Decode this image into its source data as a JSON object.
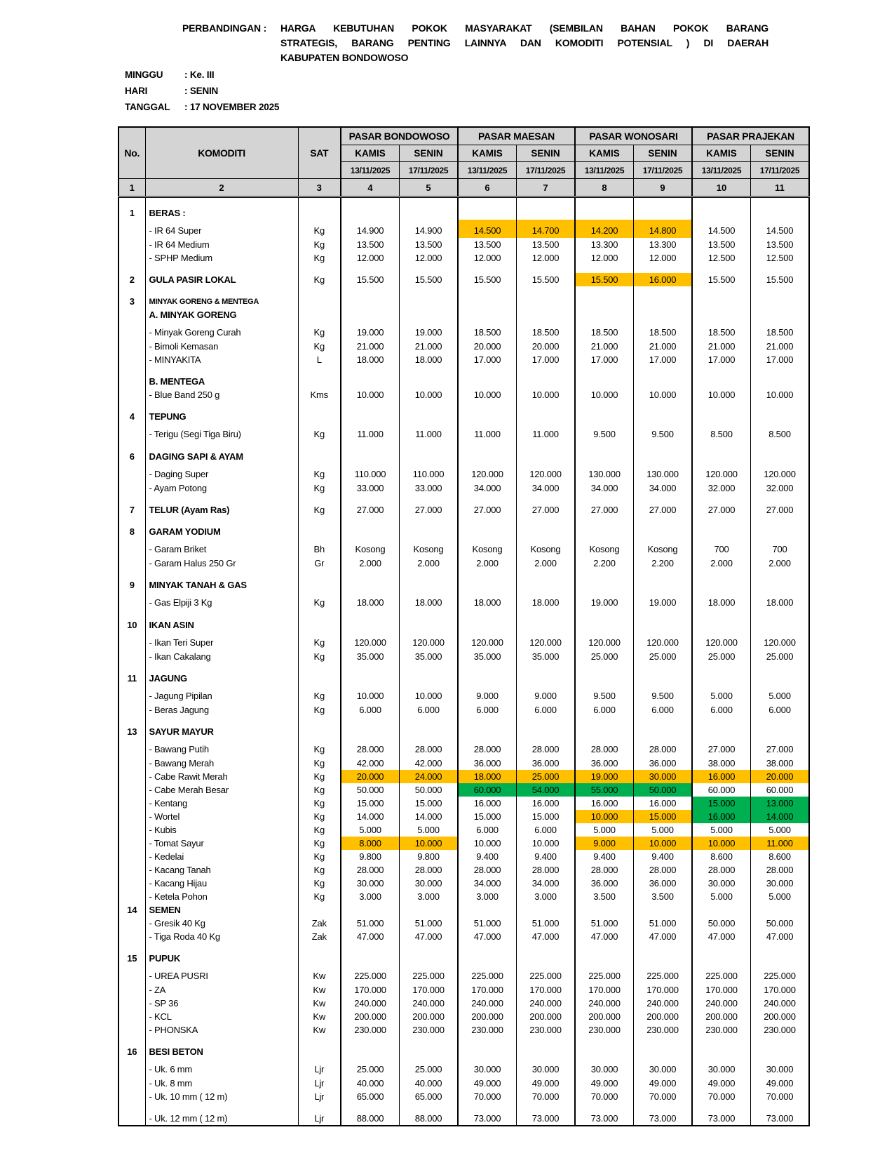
{
  "title": {
    "label": "PERBANDINGAN :",
    "lines": [
      "HARGA  KEBUTUHAN  POKOK  MASYARAKAT  (SEMBILAN  BAHAN  POKOK  BARANG",
      "STRATEGIS,  BARANG  PENTING  LAINNYA  DAN  KOMODITI POTENSIAL ) DI DAERAH",
      "KABUPATEN BONDOWOSO"
    ]
  },
  "meta": {
    "minggu": {
      "label": "MINGGU",
      "value": ": Ke. III"
    },
    "hari": {
      "label": "HARI",
      "value": ": SENIN"
    },
    "tanggal": {
      "label": "TANGGAL",
      "value": ": 17 NOVEMBER 2025"
    }
  },
  "table": {
    "fixed_headers": {
      "no": "No.",
      "komoditi": "KOMODITI",
      "sat": "SAT"
    },
    "markets": [
      "PASAR BONDOWOSO",
      "PASAR MAESAN",
      "PASAR WONOSARI",
      "PASAR PRAJEKAN"
    ],
    "days": [
      "KAMIS",
      "SENIN"
    ],
    "dates": [
      "13/11/2025",
      "17/11/2025"
    ],
    "col_numbers": [
      "1",
      "2",
      "3",
      "4",
      "5",
      "6",
      "7",
      "8",
      "9",
      "10",
      "11"
    ],
    "highlight_colors": {
      "O": "#FFC000",
      "G": "#00B050"
    },
    "header_bg": "#d4d4d4",
    "rows": [
      {
        "type": "spacer",
        "h": 8
      },
      {
        "type": "section",
        "no": "1",
        "label": "BERAS :"
      },
      {
        "type": "item",
        "first": true,
        "label": "- IR 64 Super",
        "sat": "Kg",
        "values": [
          "14.900",
          "14.900",
          "14.500",
          "14.700",
          "14.200",
          "14.800",
          "14.500",
          "14.500"
        ],
        "hl": {
          "2": "O",
          "3": "O",
          "4": "O",
          "5": "O"
        }
      },
      {
        "type": "item",
        "label": "- IR 64 Medium",
        "sat": "Kg",
        "values": [
          "13.500",
          "13.500",
          "13.500",
          "13.500",
          "13.300",
          "13.300",
          "13.500",
          "13.500"
        ]
      },
      {
        "type": "item",
        "label": "- SPHP Medium",
        "sat": "Kg",
        "values": [
          "12.000",
          "12.000",
          "12.000",
          "12.000",
          "12.000",
          "12.000",
          "12.500",
          "12.500"
        ]
      },
      {
        "type": "spacer"
      },
      {
        "type": "section",
        "no": "2",
        "label": "GULA PASIR LOKAL",
        "sat": "Kg",
        "values": [
          "15.500",
          "15.500",
          "15.500",
          "15.500",
          "15.500",
          "16.000",
          "15.500",
          "15.500"
        ],
        "hl": {
          "4": "O",
          "5": "O"
        }
      },
      {
        "type": "spacer"
      },
      {
        "type": "section",
        "no": "3",
        "label": "MINYAK GORENG & MENTEGA",
        "small": true
      },
      {
        "type": "subheader",
        "label": "A. MINYAK GORENG"
      },
      {
        "type": "item",
        "first": true,
        "label": "- Minyak Goreng Curah",
        "sat": "Kg",
        "values": [
          "19.000",
          "19.000",
          "18.500",
          "18.500",
          "18.500",
          "18.500",
          "18.500",
          "18.500"
        ]
      },
      {
        "type": "item",
        "label": "- Bimoli Kemasan",
        "sat": "Kg",
        "values": [
          "21.000",
          "21.000",
          "20.000",
          "20.000",
          "21.000",
          "21.000",
          "21.000",
          "21.000"
        ]
      },
      {
        "type": "item",
        "label": "- MINYAKITA",
        "sat": "L",
        "values": [
          "18.000",
          "18.000",
          "17.000",
          "17.000",
          "17.000",
          "17.000",
          "17.000",
          "17.000"
        ]
      },
      {
        "type": "spacer"
      },
      {
        "type": "subheader",
        "label": "B. MENTEGA"
      },
      {
        "type": "item",
        "label": "- Blue Band 250 g",
        "sat": "Kms",
        "values": [
          "10.000",
          "10.000",
          "10.000",
          "10.000",
          "10.000",
          "10.000",
          "10.000",
          "10.000"
        ]
      },
      {
        "type": "spacer"
      },
      {
        "type": "section",
        "no": "4",
        "label": "TEPUNG"
      },
      {
        "type": "item",
        "first": true,
        "label": "- Terigu (Segi Tiga Biru)",
        "sat": "Kg",
        "values": [
          "11.000",
          "11.000",
          "11.000",
          "11.000",
          "9.500",
          "9.500",
          "8.500",
          "8.500"
        ]
      },
      {
        "type": "spacer"
      },
      {
        "type": "section",
        "no": "6",
        "label": "DAGING SAPI & AYAM"
      },
      {
        "type": "item",
        "first": true,
        "label": "- Daging Super",
        "sat": "Kg",
        "values": [
          "110.000",
          "110.000",
          "120.000",
          "120.000",
          "130.000",
          "130.000",
          "120.000",
          "120.000"
        ]
      },
      {
        "type": "item",
        "label": "- Ayam Potong",
        "sat": "Kg",
        "values": [
          "33.000",
          "33.000",
          "34.000",
          "34.000",
          "34.000",
          "34.000",
          "32.000",
          "32.000"
        ]
      },
      {
        "type": "spacer"
      },
      {
        "type": "section",
        "no": "7",
        "label": "TELUR (Ayam Ras)",
        "sat": "Kg",
        "values": [
          "27.000",
          "27.000",
          "27.000",
          "27.000",
          "27.000",
          "27.000",
          "27.000",
          "27.000"
        ]
      },
      {
        "type": "spacer"
      },
      {
        "type": "section",
        "no": "8",
        "label": "GARAM YODIUM"
      },
      {
        "type": "item",
        "first": true,
        "label": "- Garam Briket",
        "sat": "Bh",
        "values": [
          "Kosong",
          "Kosong",
          "Kosong",
          "Kosong",
          "Kosong",
          "Kosong",
          "700",
          "700"
        ]
      },
      {
        "type": "item",
        "label": "- Garam Halus 250 Gr",
        "sat": "Gr",
        "values": [
          "2.000",
          "2.000",
          "2.000",
          "2.000",
          "2.200",
          "2.200",
          "2.000",
          "2.000"
        ]
      },
      {
        "type": "spacer"
      },
      {
        "type": "section",
        "no": "9",
        "label": "MINYAK TANAH & GAS"
      },
      {
        "type": "item",
        "first": true,
        "label": "- Gas Elpiji 3 Kg",
        "sat": "Kg",
        "values": [
          "18.000",
          "18.000",
          "18.000",
          "18.000",
          "19.000",
          "19.000",
          "18.000",
          "18.000"
        ]
      },
      {
        "type": "spacer"
      },
      {
        "type": "section",
        "no": "10",
        "label": "IKAN ASIN"
      },
      {
        "type": "item",
        "first": true,
        "label": "- Ikan Teri Super",
        "sat": "Kg",
        "values": [
          "120.000",
          "120.000",
          "120.000",
          "120.000",
          "120.000",
          "120.000",
          "120.000",
          "120.000"
        ]
      },
      {
        "type": "item",
        "label": "- Ikan Cakalang",
        "sat": "Kg",
        "values": [
          "35.000",
          "35.000",
          "35.000",
          "35.000",
          "25.000",
          "25.000",
          "25.000",
          "25.000"
        ]
      },
      {
        "type": "spacer"
      },
      {
        "type": "section",
        "no": "11",
        "label": "JAGUNG"
      },
      {
        "type": "item",
        "first": true,
        "label": "- Jagung Pipilan",
        "sat": "Kg",
        "values": [
          "10.000",
          "10.000",
          "9.000",
          "9.000",
          "9.500",
          "9.500",
          "5.000",
          "5.000"
        ]
      },
      {
        "type": "item",
        "label": "- Beras Jagung",
        "sat": "Kg",
        "values": [
          "6.000",
          "6.000",
          "6.000",
          "6.000",
          "6.000",
          "6.000",
          "6.000",
          "6.000"
        ]
      },
      {
        "type": "spacer"
      },
      {
        "type": "section",
        "no": "13",
        "label": "SAYUR MAYUR"
      },
      {
        "type": "item",
        "first": true,
        "label": "- Bawang Putih",
        "sat": "Kg",
        "values": [
          "28.000",
          "28.000",
          "28.000",
          "28.000",
          "28.000",
          "28.000",
          "27.000",
          "27.000"
        ]
      },
      {
        "type": "item",
        "label": "- Bawang Merah",
        "sat": "Kg",
        "values": [
          "42.000",
          "42.000",
          "36.000",
          "36.000",
          "36.000",
          "36.000",
          "38.000",
          "38.000"
        ]
      },
      {
        "type": "item",
        "label": "- Cabe Rawit Merah",
        "sat": "Kg",
        "values": [
          "20.000",
          "24.000",
          "18.000",
          "25.000",
          "19.000",
          "30.000",
          "16.000",
          "20.000"
        ],
        "hl": {
          "0": "O",
          "1": "O",
          "2": "O",
          "3": "O",
          "4": "O",
          "5": "O",
          "6": "O",
          "7": "O"
        }
      },
      {
        "type": "item",
        "label": "- Cabe Merah Besar",
        "sat": "Kg",
        "values": [
          "50.000",
          "50.000",
          "60.000",
          "54.000",
          "55.000",
          "50.000",
          "60.000",
          "60.000"
        ],
        "hl": {
          "2": "G",
          "3": "G",
          "4": "G",
          "5": "G"
        }
      },
      {
        "type": "item",
        "label": "- Kentang",
        "sat": "Kg",
        "values": [
          "15.000",
          "15.000",
          "16.000",
          "16.000",
          "16.000",
          "16.000",
          "15.000",
          "13.000"
        ],
        "hl": {
          "6": "G",
          "7": "G"
        }
      },
      {
        "type": "item",
        "label": "- Wortel",
        "sat": "Kg",
        "values": [
          "14.000",
          "14.000",
          "15.000",
          "15.000",
          "10.000",
          "15.000",
          "16.000",
          "14.000"
        ],
        "hl": {
          "4": "O",
          "5": "O",
          "6": "G",
          "7": "G"
        }
      },
      {
        "type": "item",
        "label": "- Kubis",
        "sat": "Kg",
        "values": [
          "5.000",
          "5.000",
          "6.000",
          "6.000",
          "5.000",
          "5.000",
          "5.000",
          "5.000"
        ]
      },
      {
        "type": "item",
        "label": "- Tomat Sayur",
        "sat": "Kg",
        "values": [
          "8.000",
          "10.000",
          "10.000",
          "10.000",
          "9.000",
          "10.000",
          "10.000",
          "11.000"
        ],
        "hl": {
          "0": "O",
          "1": "O",
          "4": "O",
          "5": "O",
          "6": "O",
          "7": "O"
        }
      },
      {
        "type": "item",
        "label": "- Kedelai",
        "sat": "Kg",
        "values": [
          "9.800",
          "9.800",
          "9.400",
          "9.400",
          "9.400",
          "9.400",
          "8.600",
          "8.600"
        ]
      },
      {
        "type": "item",
        "label": "- Kacang Tanah",
        "sat": "Kg",
        "values": [
          "28.000",
          "28.000",
          "28.000",
          "28.000",
          "28.000",
          "28.000",
          "28.000",
          "28.000"
        ]
      },
      {
        "type": "item",
        "label": "- Kacang Hijau",
        "sat": "Kg",
        "values": [
          "30.000",
          "30.000",
          "34.000",
          "34.000",
          "36.000",
          "36.000",
          "30.000",
          "30.000"
        ]
      },
      {
        "type": "item",
        "label": "- Ketela Pohon",
        "sat": "Kg",
        "values": [
          "3.000",
          "3.000",
          "3.000",
          "3.000",
          "3.500",
          "3.500",
          "5.000",
          "5.000"
        ]
      },
      {
        "type": "section",
        "no": "14",
        "label": "SEMEN"
      },
      {
        "type": "item",
        "label": "- Gresik 40 Kg",
        "sat": "Zak",
        "values": [
          "51.000",
          "51.000",
          "51.000",
          "51.000",
          "51.000",
          "51.000",
          "50.000",
          "50.000"
        ]
      },
      {
        "type": "item",
        "label": "- Tiga Roda 40 Kg",
        "sat": "Zak",
        "values": [
          "47.000",
          "47.000",
          "47.000",
          "47.000",
          "47.000",
          "47.000",
          "47.000",
          "47.000"
        ]
      },
      {
        "type": "spacer"
      },
      {
        "type": "section",
        "no": "15",
        "label": "PUPUK"
      },
      {
        "type": "item",
        "first": true,
        "label": "- UREA PUSRI",
        "sat": "Kw",
        "values": [
          "225.000",
          "225.000",
          "225.000",
          "225.000",
          "225.000",
          "225.000",
          "225.000",
          "225.000"
        ]
      },
      {
        "type": "item",
        "label": "- ZA",
        "sat": "Kw",
        "values": [
          "170.000",
          "170.000",
          "170.000",
          "170.000",
          "170.000",
          "170.000",
          "170.000",
          "170.000"
        ]
      },
      {
        "type": "item",
        "label": "- SP 36",
        "sat": "Kw",
        "values": [
          "240.000",
          "240.000",
          "240.000",
          "240.000",
          "240.000",
          "240.000",
          "240.000",
          "240.000"
        ]
      },
      {
        "type": "item",
        "label": "- KCL",
        "sat": "Kw",
        "values": [
          "200.000",
          "200.000",
          "200.000",
          "200.000",
          "200.000",
          "200.000",
          "200.000",
          "200.000"
        ]
      },
      {
        "type": "item",
        "label": "- PHONSKA",
        "sat": "Kw",
        "values": [
          "230.000",
          "230.000",
          "230.000",
          "230.000",
          "230.000",
          "230.000",
          "230.000",
          "230.000"
        ]
      },
      {
        "type": "spacer"
      },
      {
        "type": "section",
        "no": "16",
        "label": "BESI BETON"
      },
      {
        "type": "item",
        "first": true,
        "label": "- Uk. 6 mm",
        "sat": "Ljr",
        "values": [
          "25.000",
          "25.000",
          "30.000",
          "30.000",
          "30.000",
          "30.000",
          "30.000",
          "30.000"
        ]
      },
      {
        "type": "item",
        "label": "- Uk. 8 mm",
        "sat": "Ljr",
        "values": [
          "40.000",
          "40.000",
          "49.000",
          "49.000",
          "49.000",
          "49.000",
          "49.000",
          "49.000"
        ]
      },
      {
        "type": "item",
        "label": "- Uk. 10 mm ( 12 m)",
        "sat": "Ljr",
        "values": [
          "65.000",
          "65.000",
          "70.000",
          "70.000",
          "70.000",
          "70.000",
          "70.000",
          "70.000"
        ]
      },
      {
        "type": "spacer",
        "h": 6
      },
      {
        "type": "item",
        "label": "- Uk. 12 mm ( 12 m)",
        "sat": "Ljr",
        "values": [
          "88.000",
          "88.000",
          "73.000",
          "73.000",
          "73.000",
          "73.000",
          "73.000",
          "73.000"
        ]
      }
    ]
  }
}
